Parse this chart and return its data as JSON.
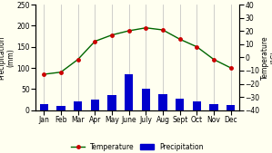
{
  "months": [
    "Jan",
    "Feb",
    "Mar",
    "Apr",
    "May",
    "June",
    "July",
    "Aug",
    "Sept",
    "Oct",
    "Nov",
    "Dec"
  ],
  "precipitation": [
    15,
    10,
    20,
    25,
    35,
    85,
    50,
    38,
    27,
    20,
    15,
    13
  ],
  "temperature_left": [
    85,
    90,
    120,
    163,
    178,
    188,
    195,
    190,
    168,
    150,
    120,
    100
  ],
  "bar_color": "#0000cc",
  "line_color": "#006600",
  "marker_color": "#cc0000",
  "background_color": "#fffff0",
  "grid_color": "#bbbbbb",
  "ylim_left": [
    0,
    250
  ],
  "ylim_right": [
    -40,
    40
  ],
  "yticks_left": [
    0,
    50,
    100,
    150,
    200,
    250
  ],
  "yticks_right": [
    -40,
    -30,
    -20,
    -10,
    0,
    10,
    20,
    30,
    40
  ],
  "ylabel_left": "Precipitation\n(mm)",
  "ylabel_right": "Temperature\n(°C)",
  "tick_fontsize": 5.5,
  "legend_fontsize": 5.5
}
